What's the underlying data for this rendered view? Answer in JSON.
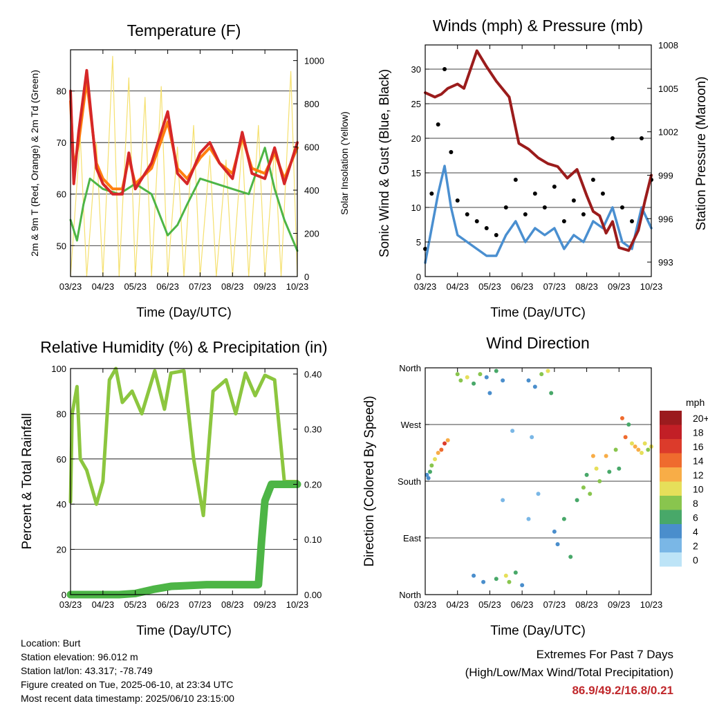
{
  "chart_data": [
    {
      "type": "line",
      "title": "Temperature (F)",
      "xlabel": "Time (Day/UTC)",
      "ylabel": "2m & 9m T (Red, Orange) & 2m Td (Green)",
      "y2label": "Solar Insolation (Yellow)",
      "x_ticks": [
        "03/23",
        "04/23",
        "05/23",
        "06/23",
        "07/23",
        "08/23",
        "09/23",
        "10/23"
      ],
      "ylim": [
        44,
        88
      ],
      "y_ticks": [
        50,
        60,
        70,
        80
      ],
      "y2lim": [
        0,
        1050
      ],
      "y2_ticks": [
        0,
        200,
        400,
        600,
        800,
        1000
      ],
      "series": [
        {
          "name": "2m T",
          "color": "#d62728",
          "t": [
            0,
            0.1,
            0.25,
            0.5,
            0.8,
            1.0,
            1.3,
            1.6,
            1.8,
            2.0,
            2.5,
            3.0,
            3.3,
            3.6,
            4.0,
            4.3,
            4.6,
            5.0,
            5.3,
            5.6,
            6.0,
            6.3,
            6.6,
            7.0
          ],
          "values": [
            80,
            62,
            72,
            84,
            65,
            62,
            60,
            60,
            68,
            61,
            66,
            76,
            64,
            62,
            68,
            70,
            66,
            63,
            72,
            64,
            63,
            69,
            62,
            70
          ]
        },
        {
          "name": "9m T",
          "color": "#ff7f0e",
          "t": [
            0,
            0.1,
            0.25,
            0.5,
            0.8,
            1.0,
            1.3,
            1.6,
            1.8,
            2.0,
            2.5,
            3.0,
            3.3,
            3.6,
            4.0,
            4.3,
            4.6,
            5.0,
            5.3,
            5.6,
            6.0,
            6.3,
            6.6,
            7.0
          ],
          "values": [
            78,
            65,
            70,
            82,
            66,
            63,
            61,
            61,
            67,
            62,
            65,
            74,
            65,
            63,
            67,
            69,
            66,
            64,
            71,
            65,
            64,
            68,
            63,
            69
          ]
        },
        {
          "name": "2m Td",
          "color": "#4db546",
          "t": [
            0,
            0.2,
            0.4,
            0.6,
            1.0,
            1.5,
            2.0,
            2.5,
            3.0,
            3.3,
            3.6,
            4.0,
            4.5,
            5.0,
            5.5,
            6.0,
            6.3,
            6.6,
            7.0
          ],
          "values": [
            55,
            51,
            58,
            63,
            61,
            60,
            62,
            60,
            52,
            54,
            58,
            63,
            62,
            61,
            60,
            69,
            61,
            55,
            49
          ]
        },
        {
          "name": "Solar",
          "color": "#f5e06e",
          "t": [
            0.0,
            0.3,
            0.5,
            0.8,
            1.0,
            1.3,
            1.5,
            1.8,
            2.0,
            2.3,
            2.5,
            2.8,
            3.0,
            3.3,
            3.5,
            3.8,
            4.0,
            4.3,
            4.5,
            4.8,
            5.0,
            5.3,
            5.5,
            5.8,
            6.0,
            6.3,
            6.5,
            6.8,
            7.0
          ],
          "values": [
            0,
            650,
            0,
            620,
            0,
            1020,
            0,
            920,
            0,
            830,
            0,
            880,
            0,
            600,
            0,
            700,
            0,
            560,
            0,
            540,
            0,
            620,
            0,
            700,
            0,
            600,
            0,
            950,
            0
          ]
        }
      ]
    },
    {
      "type": "scatter",
      "title": "Winds (mph) & Pressure (mb)",
      "xlabel": "Time (Day/UTC)",
      "ylabel": "Sonic Wind & Gust (Blue, Black)",
      "y2label": "Station Pressure (Maroon)",
      "x_ticks": [
        "03/23",
        "04/23",
        "05/23",
        "06/23",
        "07/23",
        "08/23",
        "09/23",
        "10/23"
      ],
      "ylim": [
        0,
        33.5
      ],
      "y_ticks": [
        0,
        5,
        10,
        15,
        20,
        25,
        30
      ],
      "y2lim": [
        992,
        1008
      ],
      "y2_ticks": [
        993,
        996,
        999,
        1002,
        1005,
        1008
      ],
      "series": [
        {
          "name": "Gust",
          "color": "#000000",
          "t": [
            0,
            0.2,
            0.4,
            0.6,
            0.8,
            1.0,
            1.3,
            1.6,
            1.9,
            2.2,
            2.5,
            2.8,
            3.1,
            3.4,
            3.7,
            4.0,
            4.3,
            4.6,
            4.9,
            5.2,
            5.5,
            5.8,
            6.1,
            6.4,
            6.7,
            7.0
          ],
          "values": [
            4,
            12,
            22,
            30,
            18,
            11,
            9,
            8,
            7,
            6,
            10,
            14,
            9,
            12,
            10,
            13,
            8,
            11,
            9,
            14,
            12,
            20,
            10,
            8,
            20,
            14
          ]
        },
        {
          "name": "Sonic Wind",
          "color": "#4a8fd0",
          "t": [
            0,
            0.2,
            0.4,
            0.6,
            0.8,
            1.0,
            1.3,
            1.6,
            1.9,
            2.2,
            2.5,
            2.8,
            3.1,
            3.4,
            3.7,
            4.0,
            4.3,
            4.6,
            4.9,
            5.2,
            5.5,
            5.8,
            6.1,
            6.4,
            6.7,
            7.0
          ],
          "values": [
            2,
            7,
            12,
            16,
            10,
            6,
            5,
            4,
            3,
            3,
            6,
            8,
            5,
            7,
            6,
            7,
            4,
            6,
            5,
            8,
            7,
            10,
            5,
            4,
            10,
            7
          ]
        },
        {
          "name": "Station Pressure",
          "color": "#9b1c1c",
          "t": [
            0,
            0.3,
            0.5,
            0.7,
            1.0,
            1.2,
            1.6,
            1.9,
            2.2,
            2.6,
            2.9,
            3.2,
            3.5,
            3.8,
            4.1,
            4.4,
            4.7,
            5.0,
            5.2,
            5.4,
            5.6,
            5.8,
            6.0,
            6.3,
            6.6,
            6.8,
            7.0
          ],
          "values": [
            1004.7,
            1004.4,
            1004.6,
            1005.0,
            1005.3,
            1005.0,
            1007.6,
            1006.5,
            1005.5,
            1004.4,
            1001.2,
            1000.8,
            1000.2,
            999.8,
            999.6,
            998.8,
            999.4,
            997.6,
            996.5,
            996.2,
            995.0,
            995.8,
            994.0,
            993.8,
            995.2,
            997.2,
            999.0
          ]
        }
      ]
    },
    {
      "type": "line",
      "title": "Relative Humidity (%) & Precipitation (in)",
      "xlabel": "Time (Day/UTC)",
      "ylabel": "Percent & Total Rainfall",
      "x_ticks": [
        "03/23",
        "04/23",
        "05/23",
        "06/23",
        "07/23",
        "08/23",
        "09/23",
        "10/23"
      ],
      "ylim": [
        0,
        100
      ],
      "y_ticks": [
        0,
        20,
        40,
        60,
        80,
        100
      ],
      "y2lim": [
        0,
        0.41
      ],
      "y2_ticks": [
        "0.00",
        "0.10",
        "0.20",
        "0.30",
        "0.40"
      ],
      "series": [
        {
          "name": "RH",
          "color": "#8cc63f",
          "t": [
            0,
            0.05,
            0.2,
            0.3,
            0.5,
            0.8,
            1.0,
            1.2,
            1.4,
            1.6,
            1.9,
            2.2,
            2.6,
            2.9,
            3.1,
            3.5,
            3.8,
            4.1,
            4.4,
            4.8,
            5.1,
            5.4,
            5.7,
            6.0,
            6.3,
            6.6,
            7.0
          ],
          "values": [
            41,
            80,
            92,
            60,
            55,
            40,
            50,
            95,
            100,
            85,
            90,
            80,
            99,
            82,
            98,
            99,
            60,
            35,
            90,
            95,
            80,
            98,
            88,
            97,
            95,
            50,
            50
          ]
        },
        {
          "name": "Total Rainfall",
          "color": "#4db546",
          "t": [
            0,
            1.5,
            2.0,
            2.6,
            3.1,
            4.2,
            5.8,
            5.9,
            6.0,
            6.2,
            7.0
          ],
          "values": [
            0,
            0,
            0.002,
            0.01,
            0.015,
            0.018,
            0.018,
            0.1,
            0.17,
            0.2,
            0.2
          ]
        }
      ]
    },
    {
      "type": "scatter",
      "title": "Wind Direction",
      "xlabel": "Time (Day/UTC)",
      "ylabel": "Direction (Colored By Speed)",
      "x_ticks": [
        "03/23",
        "04/23",
        "05/23",
        "06/23",
        "07/23",
        "08/23",
        "09/23",
        "10/23"
      ],
      "y_ticks": [
        "North",
        "East",
        "South",
        "West",
        "North"
      ],
      "ylim": [
        0,
        360
      ],
      "legend_title": "mph",
      "legend_labels": [
        "20+",
        "18",
        "16",
        "14",
        "12",
        "10",
        "8",
        "6",
        "4",
        "2",
        "0"
      ],
      "legend_colors": [
        "#9b1b1e",
        "#c21f26",
        "#dc3b2b",
        "#ef6b2e",
        "#f8ad47",
        "#e6df5a",
        "#89c54e",
        "#48a869",
        "#4a8ecc",
        "#7ab7e6",
        "#bde4f7"
      ],
      "points": [
        [
          0.05,
          190,
          3
        ],
        [
          0.1,
          185,
          4
        ],
        [
          0.15,
          195,
          5
        ],
        [
          0.2,
          205,
          7
        ],
        [
          0.3,
          215,
          10
        ],
        [
          0.4,
          225,
          12
        ],
        [
          0.5,
          230,
          14
        ],
        [
          0.6,
          240,
          15
        ],
        [
          0.7,
          245,
          12
        ],
        [
          1.0,
          350,
          8
        ],
        [
          1.1,
          340,
          7
        ],
        [
          1.3,
          345,
          9
        ],
        [
          1.5,
          335,
          6
        ],
        [
          1.7,
          350,
          8
        ],
        [
          1.9,
          345,
          4
        ],
        [
          2.0,
          320,
          3
        ],
        [
          2.2,
          355,
          5
        ],
        [
          2.4,
          340,
          4
        ],
        [
          1.5,
          30,
          3
        ],
        [
          1.8,
          20,
          4
        ],
        [
          2.2,
          25,
          5
        ],
        [
          2.5,
          30,
          9
        ],
        [
          2.6,
          20,
          8
        ],
        [
          2.8,
          35,
          6
        ],
        [
          3.0,
          15,
          3
        ],
        [
          3.2,
          340,
          4
        ],
        [
          3.4,
          330,
          3
        ],
        [
          3.6,
          350,
          7
        ],
        [
          3.8,
          355,
          10
        ],
        [
          3.9,
          320,
          5
        ],
        [
          3.3,
          250,
          2
        ],
        [
          3.5,
          160,
          2
        ],
        [
          3.2,
          120,
          1
        ],
        [
          2.7,
          260,
          2
        ],
        [
          2.4,
          150,
          1
        ],
        [
          4.0,
          100,
          4
        ],
        [
          4.1,
          80,
          3
        ],
        [
          4.3,
          120,
          5
        ],
        [
          4.5,
          60,
          6
        ],
        [
          4.7,
          150,
          6
        ],
        [
          4.9,
          170,
          7
        ],
        [
          5.0,
          190,
          5
        ],
        [
          5.1,
          160,
          8
        ],
        [
          5.2,
          220,
          12
        ],
        [
          5.3,
          200,
          10
        ],
        [
          5.4,
          180,
          7
        ],
        [
          5.6,
          220,
          12
        ],
        [
          5.7,
          195,
          6
        ],
        [
          5.9,
          230,
          8
        ],
        [
          6.0,
          200,
          5
        ],
        [
          6.2,
          250,
          14
        ],
        [
          6.3,
          270,
          6
        ],
        [
          6.4,
          240,
          10
        ],
        [
          6.5,
          235,
          12
        ],
        [
          6.6,
          230,
          11
        ],
        [
          6.7,
          225,
          10
        ],
        [
          6.8,
          240,
          9
        ],
        [
          6.9,
          230,
          8
        ],
        [
          7.0,
          235,
          10
        ],
        [
          6.1,
          280,
          14
        ]
      ]
    }
  ],
  "info": {
    "location": "Location: Burt",
    "elevation": "Station elevation: 96.012 m",
    "latlon": "Station lat/lon: 43.317; -78.749",
    "created": "Figure created on Tue, 2025-06-10, at 23:34 UTC",
    "recent": "Most recent data timestamp: 2025/06/10 23:15:00"
  },
  "extremes": {
    "title": "Extremes For Past 7 Days",
    "subtitle": "(High/Low/Max Wind/Total Precipitation)",
    "values": "86.9/49.2/16.8/0.21"
  }
}
